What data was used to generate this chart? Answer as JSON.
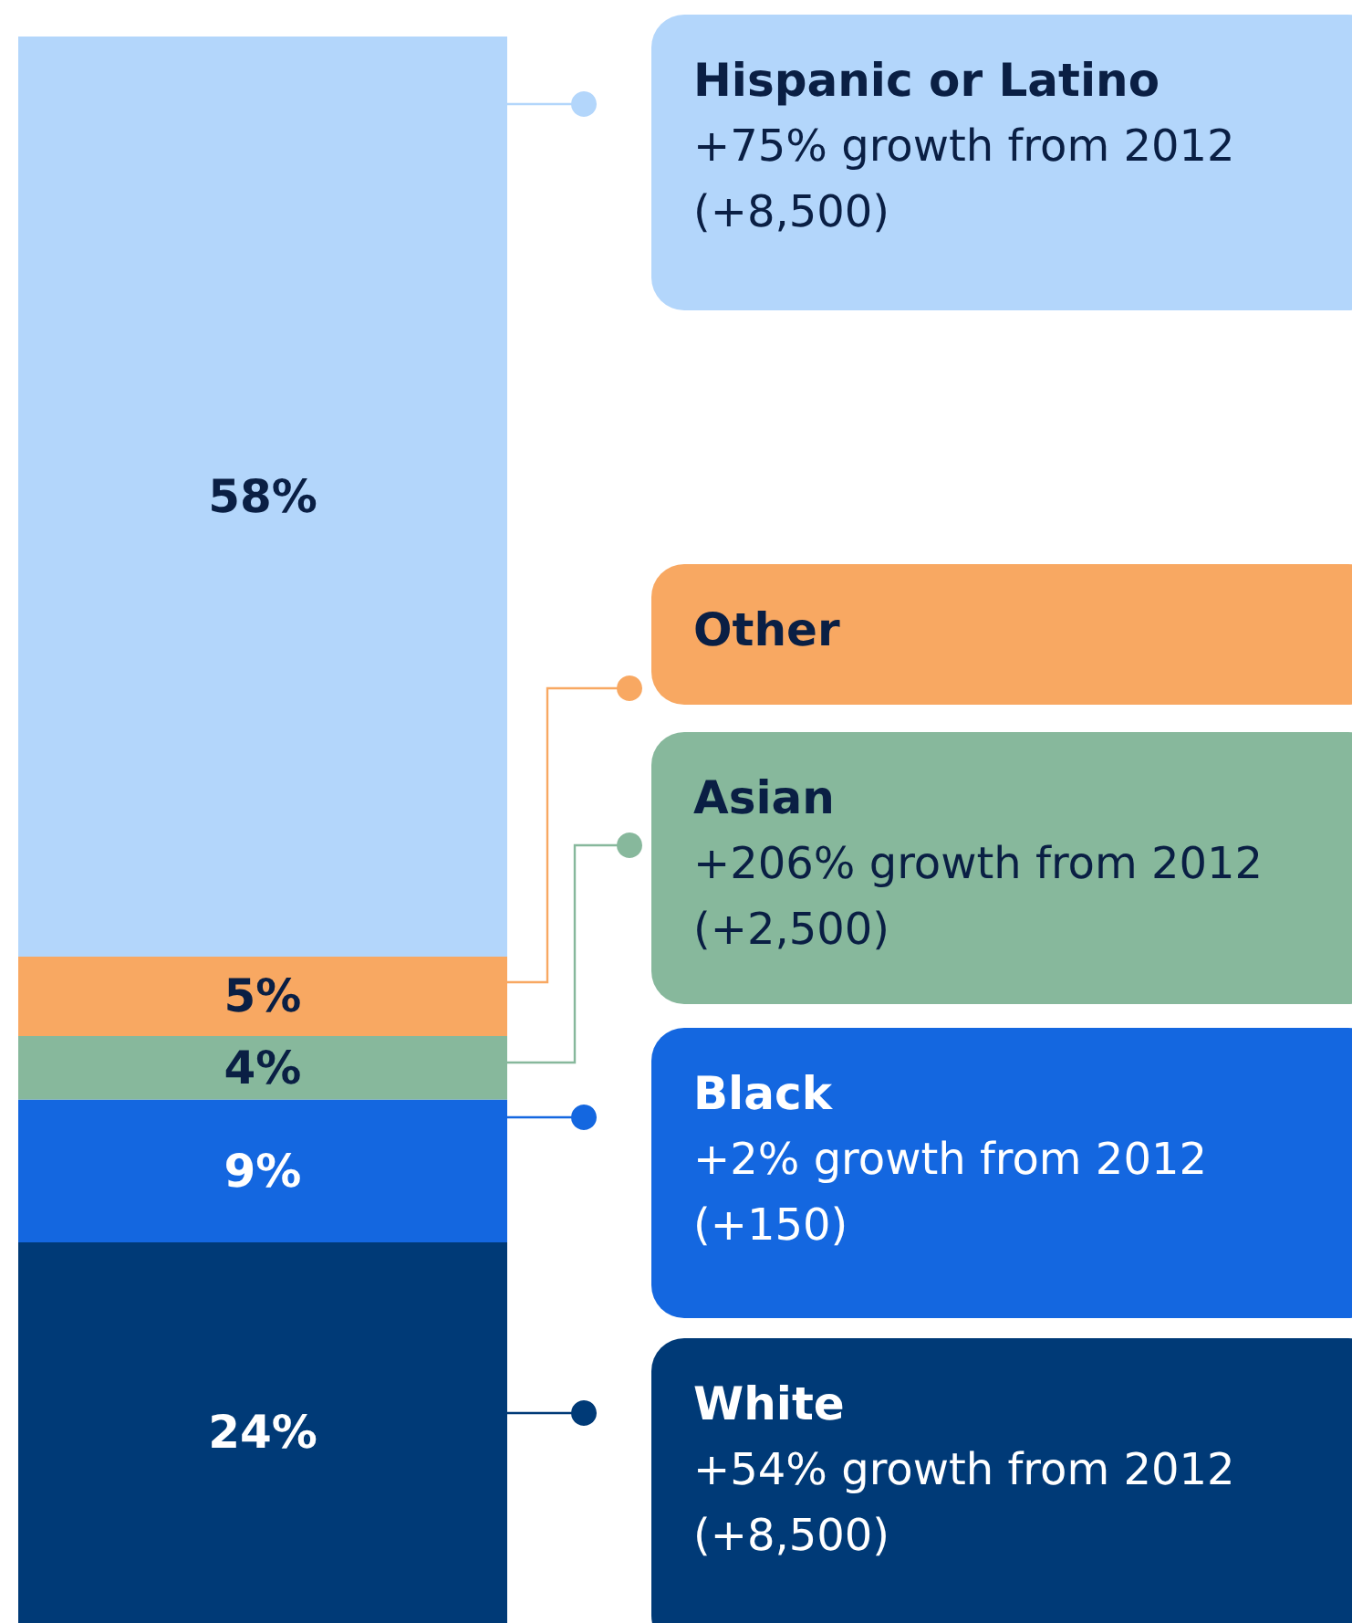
{
  "chart_data": {
    "type": "bar",
    "stacked": true,
    "categories": [
      null
    ],
    "series": [
      {
        "name": "White",
        "color": "#003a77",
        "values": [
          24
        ],
        "value_labels": [
          "24%"
        ]
      },
      {
        "name": "Black",
        "color": "#1467e0",
        "values": [
          9
        ],
        "value_labels": [
          "9%"
        ]
      },
      {
        "name": "Asian",
        "color": "#87b89c",
        "values": [
          4
        ],
        "value_labels": [
          "4%"
        ]
      },
      {
        "name": "Other",
        "color": "#f8a862",
        "values": [
          5
        ],
        "value_labels": [
          "5%"
        ]
      },
      {
        "name": "Hispanic or Latino",
        "color": "#b3d6fb",
        "values": [
          58
        ],
        "value_labels": [
          "58%"
        ]
      }
    ],
    "annotations": [
      "+54% growth from 2012 (+8,500)",
      "+2% growth from 2012 (+150)",
      "+206% growth from 2012 (+2,500)",
      "+75% growth from 2012 (+8,500)"
    ],
    "legend": "right"
  }
}
